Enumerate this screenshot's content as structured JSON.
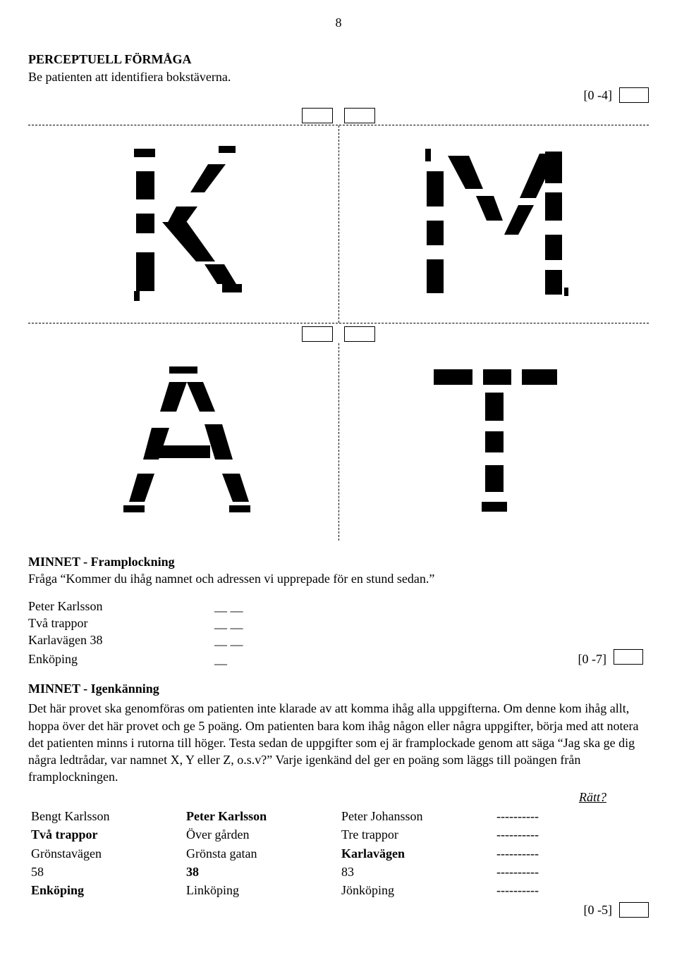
{
  "page_number": "8",
  "section1": {
    "title": "PERCEPTUELL FÖRMÅGA",
    "instruction": "Be patienten att identifiera bokstäverna.",
    "score_range": "[0 -4]"
  },
  "section2": {
    "title": "MINNET - Framplockning",
    "instruction": "Fråga “Kommer du ihåg namnet och adressen vi upprepade för en stund sedan.”",
    "items": {
      "l1": "Peter Karlsson",
      "l2": "Två trappor",
      "l3": "Karlavägen 38",
      "l4": "Enköping"
    },
    "blanks": {
      "b2": "__ __",
      "b1": "__"
    },
    "score_range": "[0 -7]"
  },
  "section3": {
    "title": "MINNET - Igenkänning",
    "para": "Det här provet ska genomföras om patienten inte klarade av att komma ihåg alla uppgifterna. Om denne kom ihåg allt, hoppa över det här provet och ge 5 poäng. Om patienten bara kom ihåg någon eller några uppgifter, börja med att notera det patienten minns i rutorna till höger. Testa sedan de uppgifter som ej är framplockade genom att säga “Jag ska ge dig några ledtrådar, var namnet X, Y eller Z, o.s.v?” Varje igenkänd del ger en poäng som läggs till poängen från framplockningen.",
    "ratt": "Rätt?",
    "rows": [
      {
        "c1": "Bengt Karlsson",
        "c2": "Peter Karlsson",
        "c2b": true,
        "c3": "Peter Johansson",
        "dash": "----------"
      },
      {
        "c1": "Två trappor",
        "c1b": true,
        "c2": "Över gården",
        "c3": "Tre trappor",
        "dash": "----------"
      },
      {
        "c1": "Grönstavägen",
        "c2": "Grönsta gatan",
        "c3": "Karlavägen",
        "c3b": true,
        "dash": "----------"
      },
      {
        "c1": "58",
        "c2": "38",
        "c2b": true,
        "c3": "83",
        "dash": "----------"
      },
      {
        "c1": "Enköping",
        "c1b": true,
        "c2": "Linköping",
        "c3": "Jönköping",
        "dash": "----------"
      }
    ],
    "score_range": "[0 -5]"
  }
}
